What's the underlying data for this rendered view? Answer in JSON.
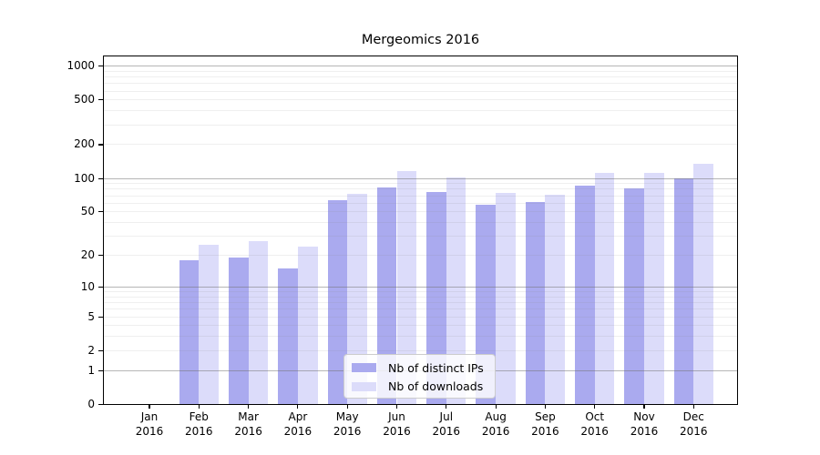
{
  "title": "Mergeomics 2016",
  "chart_data": {
    "type": "bar",
    "title": "Mergeomics 2016",
    "categories": [
      "Jan",
      "Feb",
      "Mar",
      "Apr",
      "May",
      "Jun",
      "Jul",
      "Aug",
      "Sep",
      "Oct",
      "Nov",
      "Dec"
    ],
    "category_year": "2016",
    "series": [
      {
        "name": "Nb of distinct IPs",
        "color": "#aaaaef",
        "values": [
          0,
          18,
          19,
          15,
          63,
          82,
          75,
          57,
          61,
          85,
          80,
          100
        ]
      },
      {
        "name": "Nb of downloads",
        "color": "#dcdcfa",
        "values": [
          0,
          25,
          27,
          24,
          72,
          115,
          101,
          74,
          71,
          111,
          112,
          135
        ]
      }
    ],
    "xlabel": "",
    "ylabel": "",
    "yscale": "log1p",
    "ylim": [
      0,
      1230
    ],
    "ytick_values": [
      0,
      1,
      2,
      5,
      10,
      20,
      50,
      100,
      200,
      500,
      1000
    ],
    "ytick_labels": [
      "0",
      "1",
      "2",
      "5",
      "10",
      "20",
      "50",
      "100",
      "200",
      "500",
      "1000"
    ],
    "grid_major_values": [
      1,
      10,
      100,
      1000
    ],
    "grid_minor_values": [
      2,
      3,
      4,
      5,
      6,
      7,
      8,
      9,
      20,
      30,
      40,
      50,
      60,
      70,
      80,
      90,
      200,
      300,
      400,
      500,
      600,
      700,
      800,
      900
    ],
    "grid": "on",
    "legend_position": "bottom-center",
    "colors": {
      "bar_dark": "#aaaaef",
      "bar_light": "#dcdcfa",
      "axis": "#000000",
      "grid_major": "#c2c2c2",
      "grid_minor": "#ededed"
    }
  }
}
